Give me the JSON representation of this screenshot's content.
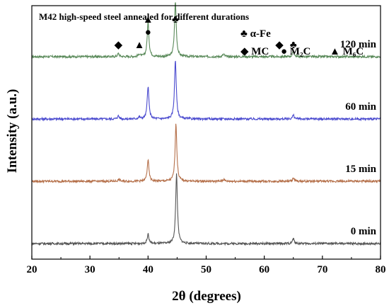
{
  "chart_data": {
    "type": "line",
    "title": "M42 high-speed steel annealed for different durations",
    "xlabel": "2θ (degrees)",
    "ylabel": "Intensity (a.u.)",
    "xlim": [
      20,
      80
    ],
    "xticks": [
      20,
      30,
      40,
      50,
      60,
      70,
      80
    ],
    "legend": {
      "position": "top-right",
      "entries": [
        {
          "symbol": "♣",
          "label": "α-Fe"
        },
        {
          "symbol": "◆",
          "label": "MC"
        },
        {
          "symbol": "●",
          "label": "M₂C"
        },
        {
          "symbol": "▲",
          "label": "M₆C"
        }
      ]
    },
    "series": [
      {
        "name": "120 min",
        "color": "#5a8a5a",
        "baseline": 3.0,
        "peaks": [
          {
            "x": 34.9,
            "h": 0.05
          },
          {
            "x": 38.5,
            "h": 0.04
          },
          {
            "x": 40.0,
            "h": 0.55
          },
          {
            "x": 44.7,
            "h": 0.88
          },
          {
            "x": 53.0,
            "h": 0.04
          },
          {
            "x": 65.0,
            "h": 0.08
          }
        ],
        "annotations": [
          {
            "x": 34.9,
            "level": 1,
            "symbol": "◆"
          },
          {
            "x": 38.5,
            "level": 1,
            "symbol": "▲"
          },
          {
            "x": 40.0,
            "level": 2,
            "symbol": "●"
          },
          {
            "x": 40.0,
            "level": 3,
            "symbol": "▲"
          },
          {
            "x": 44.7,
            "level": 3,
            "symbol": "♣"
          },
          {
            "x": 62.6,
            "level": 1,
            "symbol": "◆"
          },
          {
            "x": 65.0,
            "level": 1,
            "symbol": "♣"
          }
        ]
      },
      {
        "name": "60 min",
        "color": "#4a4acf",
        "baseline": 2.0,
        "peaks": [
          {
            "x": 34.9,
            "h": 0.05
          },
          {
            "x": 38.5,
            "h": 0.03
          },
          {
            "x": 40.0,
            "h": 0.52
          },
          {
            "x": 44.7,
            "h": 0.95
          },
          {
            "x": 65.0,
            "h": 0.06
          }
        ]
      },
      {
        "name": "15 min",
        "color": "#b5704a",
        "baseline": 1.0,
        "peaks": [
          {
            "x": 35.0,
            "h": 0.03
          },
          {
            "x": 40.0,
            "h": 0.34
          },
          {
            "x": 44.8,
            "h": 0.92
          },
          {
            "x": 53.0,
            "h": 0.03
          },
          {
            "x": 65.0,
            "h": 0.05
          }
        ]
      },
      {
        "name": "0 min",
        "color": "#555555",
        "baseline": 0.0,
        "peaks": [
          {
            "x": 40.0,
            "h": 0.15
          },
          {
            "x": 44.9,
            "h": 1.12
          },
          {
            "x": 65.0,
            "h": 0.08
          }
        ]
      }
    ]
  }
}
